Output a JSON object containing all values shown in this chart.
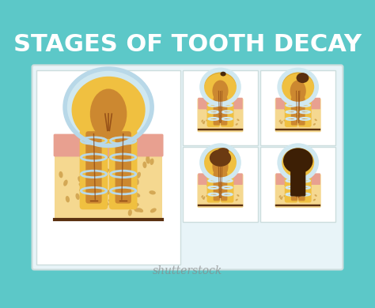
{
  "bg_color": "#5cc8c8",
  "panel_bg": "#e8f4f8",
  "title": "STAGES OF TOOTH DECAY",
  "title_color": "#ffffff",
  "title_fontsize": 22,
  "title_bg": "#5cc8c8",
  "shutterstock_color": "#888888",
  "enamel_color": "#d0e8f0",
  "dentin_color": "#f0c040",
  "pulp_color": "#cc8830",
  "nerve_color": "#8b4513",
  "gum_color": "#e8a090",
  "bone_color": "#f5d890",
  "bone_dots_color": "#d4a855",
  "root_canal_color": "#e8b060",
  "decay_stage1": "#4a2a0a",
  "decay_stage2": "#5a3010",
  "decay_stage3": "#6b3a12",
  "decay_stage4": "#3d1f05",
  "outline_color": "#cccccc",
  "white_panel": "#ffffff",
  "bottom_line_color": "#5a3010",
  "gum_line_color": "#e09080"
}
